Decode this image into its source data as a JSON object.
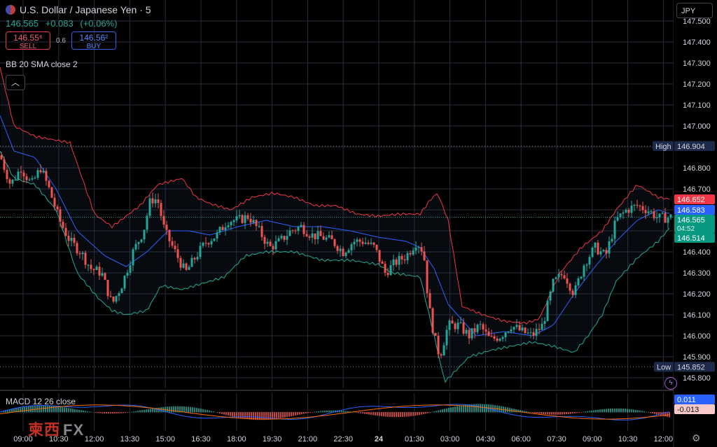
{
  "header": {
    "symbol": "U.S. Dollar / Japanese Yen · 5",
    "last": "146.565",
    "change": "+0.083",
    "change_pct": "(+0.06%)",
    "sell_price": "146.55⁶",
    "sell_label": "SELL",
    "spread": "0.6",
    "buy_price": "146.56²",
    "buy_label": "BUY"
  },
  "indicator_label": "BB 20 SMA close 2",
  "macd_label": "MACD 12 26 close",
  "currency_button": "JPY",
  "watermark": {
    "cn": "柬西",
    "fx": "FX"
  },
  "price_tags": {
    "high_label": "High",
    "high_value": "146.904",
    "low_label": "Low",
    "low_value": "145.852",
    "upper_band": "146.652",
    "middle_band": "146.583",
    "last": "146.565",
    "countdown": "04:52",
    "lower_band": "146.514",
    "macd_value": "0.011",
    "macd_hist": "-0.013"
  },
  "colors": {
    "up": "#26a69a",
    "down": "#ef5350",
    "upper_band": "#f23645",
    "basis": "#2962ff",
    "lower_band": "#22ab94",
    "grid": "#2a2e39",
    "macd": "#2962ff",
    "signal": "#ff6d00"
  },
  "chart_data": {
    "type": "candlestick",
    "y_ticks": [
      "147.500",
      "147.400",
      "147.300",
      "147.200",
      "147.100",
      "147.000",
      "146.900",
      "146.800",
      "146.700",
      "146.600",
      "146.500",
      "146.400",
      "146.300",
      "146.200",
      "146.100",
      "146.000",
      "145.900",
      "145.800"
    ],
    "ylim": [
      145.75,
      147.6
    ],
    "x_ticks": [
      "09:00",
      "10:30",
      "12:00",
      "13:30",
      "15:00",
      "16:30",
      "18:00",
      "19:30",
      "21:00",
      "22:30",
      "24",
      "01:30",
      "03:00",
      "04:30",
      "06:00",
      "07:30",
      "09:00",
      "10:30",
      "12:00"
    ],
    "series": [
      {
        "name": "Bollinger upper",
        "anchors": [
          [
            0,
            147.28
          ],
          [
            20,
            147.0
          ],
          [
            50,
            146.95
          ],
          [
            100,
            146.92
          ],
          [
            135,
            146.58
          ],
          [
            160,
            146.52
          ],
          [
            200,
            146.62
          ],
          [
            225,
            146.72
          ],
          [
            260,
            146.75
          ],
          [
            280,
            146.66
          ],
          [
            300,
            146.63
          ],
          [
            330,
            146.6
          ],
          [
            360,
            146.66
          ],
          [
            390,
            146.68
          ],
          [
            420,
            146.66
          ],
          [
            450,
            146.62
          ],
          [
            480,
            146.62
          ],
          [
            510,
            146.58
          ],
          [
            540,
            146.57
          ],
          [
            570,
            146.58
          ],
          [
            600,
            146.58
          ],
          [
            615,
            146.65
          ],
          [
            625,
            146.68
          ],
          [
            640,
            146.55
          ],
          [
            660,
            146.14
          ],
          [
            690,
            146.1
          ],
          [
            720,
            146.07
          ],
          [
            750,
            146.06
          ],
          [
            770,
            146.08
          ],
          [
            800,
            146.3
          ],
          [
            830,
            146.42
          ],
          [
            860,
            146.5
          ],
          [
            880,
            146.6
          ],
          [
            910,
            146.72
          ],
          [
            940,
            146.66
          ],
          [
            958,
            146.65
          ]
        ]
      },
      {
        "name": "Bollinger basis",
        "anchors": [
          [
            0,
            147.05
          ],
          [
            20,
            146.88
          ],
          [
            50,
            146.85
          ],
          [
            80,
            146.7
          ],
          [
            110,
            146.5
          ],
          [
            150,
            146.38
          ],
          [
            180,
            146.33
          ],
          [
            210,
            146.4
          ],
          [
            240,
            146.5
          ],
          [
            270,
            146.5
          ],
          [
            300,
            146.48
          ],
          [
            340,
            146.52
          ],
          [
            380,
            146.55
          ],
          [
            420,
            146.52
          ],
          [
            460,
            146.52
          ],
          [
            500,
            146.5
          ],
          [
            540,
            146.47
          ],
          [
            580,
            146.45
          ],
          [
            600,
            146.42
          ],
          [
            620,
            146.32
          ],
          [
            640,
            146.15
          ],
          [
            680,
            146.0
          ],
          [
            720,
            146.02
          ],
          [
            760,
            146.0
          ],
          [
            790,
            146.05
          ],
          [
            820,
            146.2
          ],
          [
            850,
            146.33
          ],
          [
            880,
            146.45
          ],
          [
            910,
            146.55
          ],
          [
            940,
            146.6
          ],
          [
            958,
            146.58
          ]
        ]
      },
      {
        "name": "Bollinger lower",
        "anchors": [
          [
            0,
            146.88
          ],
          [
            20,
            146.75
          ],
          [
            50,
            146.72
          ],
          [
            80,
            146.6
          ],
          [
            110,
            146.3
          ],
          [
            140,
            146.18
          ],
          [
            160,
            146.12
          ],
          [
            180,
            146.1
          ],
          [
            210,
            146.12
          ],
          [
            230,
            146.24
          ],
          [
            260,
            146.22
          ],
          [
            290,
            146.25
          ],
          [
            320,
            146.28
          ],
          [
            350,
            146.38
          ],
          [
            380,
            146.4
          ],
          [
            420,
            146.4
          ],
          [
            460,
            146.36
          ],
          [
            500,
            146.36
          ],
          [
            540,
            146.34
          ],
          [
            560,
            146.3
          ],
          [
            600,
            146.28
          ],
          [
            620,
            146.0
          ],
          [
            635,
            145.78
          ],
          [
            650,
            145.83
          ],
          [
            670,
            145.9
          ],
          [
            700,
            145.93
          ],
          [
            730,
            145.95
          ],
          [
            760,
            145.97
          ],
          [
            790,
            145.95
          ],
          [
            820,
            145.92
          ],
          [
            840,
            146.0
          ],
          [
            860,
            146.1
          ],
          [
            880,
            146.26
          ],
          [
            910,
            146.37
          ],
          [
            940,
            146.45
          ],
          [
            958,
            146.52
          ]
        ]
      },
      {
        "name": "Candles path",
        "anchors": [
          [
            0,
            146.86
          ],
          [
            15,
            146.72
          ],
          [
            30,
            146.8
          ],
          [
            45,
            146.72
          ],
          [
            58,
            146.8
          ],
          [
            70,
            146.7
          ],
          [
            85,
            146.55
          ],
          [
            100,
            146.45
          ],
          [
            115,
            146.4
          ],
          [
            130,
            146.32
          ],
          [
            145,
            146.3
          ],
          [
            160,
            146.15
          ],
          [
            175,
            146.25
          ],
          [
            190,
            146.4
          ],
          [
            205,
            146.5
          ],
          [
            215,
            146.65
          ],
          [
            225,
            146.65
          ],
          [
            235,
            146.5
          ],
          [
            250,
            146.4
          ],
          [
            265,
            146.3
          ],
          [
            280,
            146.38
          ],
          [
            295,
            146.45
          ],
          [
            310,
            146.48
          ],
          [
            325,
            146.55
          ],
          [
            340,
            146.55
          ],
          [
            355,
            146.57
          ],
          [
            370,
            146.5
          ],
          [
            385,
            146.42
          ],
          [
            400,
            146.45
          ],
          [
            415,
            146.5
          ],
          [
            430,
            146.52
          ],
          [
            445,
            146.48
          ],
          [
            460,
            146.47
          ],
          [
            475,
            146.45
          ],
          [
            490,
            146.4
          ],
          [
            505,
            146.45
          ],
          [
            520,
            146.45
          ],
          [
            535,
            146.42
          ],
          [
            550,
            146.3
          ],
          [
            565,
            146.35
          ],
          [
            580,
            146.38
          ],
          [
            595,
            146.45
          ],
          [
            605,
            146.4
          ],
          [
            612,
            146.15
          ],
          [
            620,
            146.0
          ],
          [
            628,
            145.9
          ],
          [
            640,
            146.05
          ],
          [
            655,
            146.05
          ],
          [
            670,
            146.0
          ],
          [
            685,
            146.05
          ],
          [
            700,
            145.98
          ],
          [
            715,
            146.0
          ],
          [
            730,
            146.05
          ],
          [
            745,
            146.02
          ],
          [
            760,
            146.0
          ],
          [
            775,
            146.05
          ],
          [
            790,
            146.25
          ],
          [
            805,
            146.3
          ],
          [
            820,
            146.2
          ],
          [
            835,
            146.35
          ],
          [
            850,
            146.42
          ],
          [
            865,
            146.38
          ],
          [
            880,
            146.55
          ],
          [
            895,
            146.6
          ],
          [
            910,
            146.62
          ],
          [
            925,
            146.6
          ],
          [
            940,
            146.56
          ],
          [
            958,
            146.565
          ]
        ]
      }
    ],
    "macd_ylim": [
      -0.08,
      0.08
    ]
  }
}
